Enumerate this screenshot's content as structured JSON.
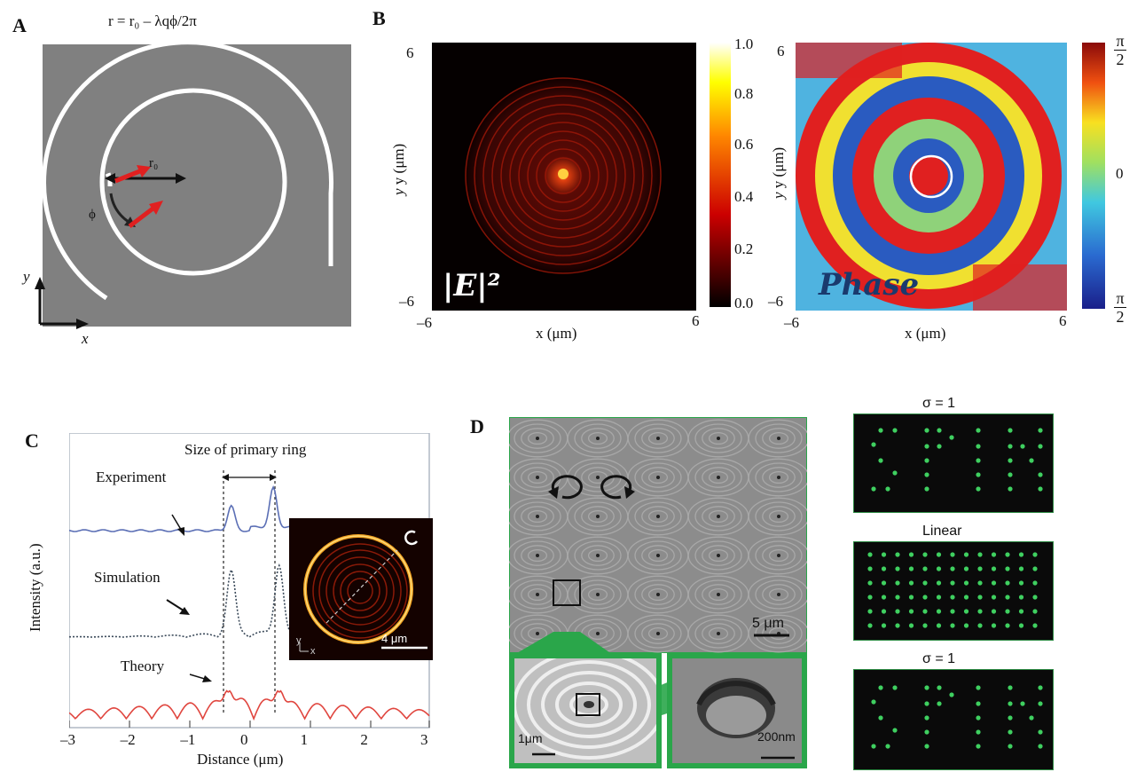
{
  "panelA": {
    "label": "A",
    "formula": "r = r₀ – λqϕ/2π",
    "r0": "r₀",
    "phi": "ϕ",
    "axis_y": "y",
    "axis_x": "x",
    "bg_color": "#808080"
  },
  "panelB": {
    "label": "B",
    "left": {
      "overlay": "|E|²",
      "ytick_top": "6",
      "ytick_bottom": "–6",
      "xtick_left": "–6",
      "xtick_right": "6",
      "xlabel": "x (μm)",
      "ylabel": "y (μm)",
      "colorbar_ticks": [
        "1.0",
        "0.8",
        "0.6",
        "0.4",
        "0.2",
        "0.0"
      ]
    },
    "right": {
      "overlay": "Phase",
      "ytick_top": "6",
      "ytick_bottom": "–6",
      "xtick_left": "–6",
      "xtick_right": "6",
      "xlabel": "x (μm)",
      "ylabel": "y (μm)",
      "cb_top_num": "π",
      "cb_top_den": "2",
      "cb_mid": "0",
      "cb_bot_num": "π",
      "cb_bot_den": "2"
    }
  },
  "panelC": {
    "label": "C",
    "title": "Size of primary ring",
    "ylabel": "Intensity (a.u.)",
    "xlabel": "Distance (μm)",
    "labels": {
      "experiment": "Experiment",
      "simulation": "Simulation",
      "theory": "Theory"
    },
    "inset_scale": "4 μm",
    "inset_y": "y",
    "inset_x": "x",
    "colors": {
      "experiment": "#5b6fb5",
      "simulation": "#3b4a5a",
      "theory": "#e0463f"
    }
  },
  "panelD": {
    "label": "D",
    "scale_main": "5 μm",
    "scale_inset1": "1μm",
    "scale_inset2": "200nm",
    "tile1_title": "σ = 1",
    "tile2_title": "Linear",
    "tile3_title": "σ = 1",
    "accent": "#2aa64a"
  },
  "chart_data": {
    "type": "line",
    "title": "Size of primary ring",
    "xlabel": "Distance (μm)",
    "ylabel": "Intensity (a.u.)",
    "xlim": [
      -3,
      3
    ],
    "x_ticks": [
      "–3",
      "–2",
      "–1",
      "0",
      "1",
      "2",
      "3"
    ],
    "series": [
      {
        "name": "Experiment",
        "peaks_at": [
          -0.3,
          0.4
        ]
      },
      {
        "name": "Simulation",
        "peaks_at": [
          -0.3,
          0.5
        ]
      },
      {
        "name": "Theory",
        "peaks_at": [
          -0.35,
          0.5
        ]
      }
    ]
  }
}
